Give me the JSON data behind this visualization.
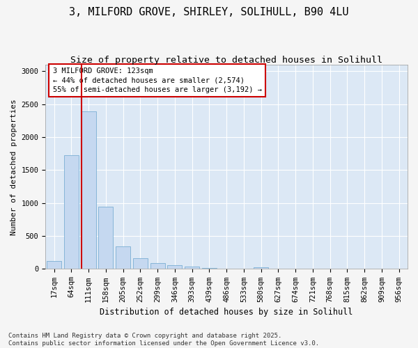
{
  "title_line1": "3, MILFORD GROVE, SHIRLEY, SOLIHULL, B90 4LU",
  "title_line2": "Size of property relative to detached houses in Solihull",
  "xlabel": "Distribution of detached houses by size in Solihull",
  "ylabel": "Number of detached properties",
  "categories": [
    "17sqm",
    "64sqm",
    "111sqm",
    "158sqm",
    "205sqm",
    "252sqm",
    "299sqm",
    "346sqm",
    "393sqm",
    "439sqm",
    "486sqm",
    "533sqm",
    "580sqm",
    "627sqm",
    "674sqm",
    "721sqm",
    "768sqm",
    "815sqm",
    "862sqm",
    "909sqm",
    "956sqm"
  ],
  "values": [
    120,
    1730,
    2390,
    950,
    340,
    160,
    85,
    55,
    40,
    20,
    5,
    5,
    25,
    0,
    0,
    0,
    0,
    0,
    0,
    0,
    0
  ],
  "bar_color": "#c5d8f0",
  "bar_edge_color": "#7aafd4",
  "vline_x_index": 2,
  "vline_color": "#cc0000",
  "annotation_text": "3 MILFORD GROVE: 123sqm\n← 44% of detached houses are smaller (2,574)\n55% of semi-detached houses are larger (3,192) →",
  "annotation_box_edge_color": "#cc0000",
  "ylim": [
    0,
    3100
  ],
  "yticks": [
    0,
    500,
    1000,
    1500,
    2000,
    2500,
    3000
  ],
  "plot_bg_color": "#dce8f5",
  "fig_bg_color": "#f5f5f5",
  "grid_color": "#ffffff",
  "footer": "Contains HM Land Registry data © Crown copyright and database right 2025.\nContains public sector information licensed under the Open Government Licence v3.0.",
  "title1_fontsize": 11,
  "title2_fontsize": 9.5,
  "ylabel_fontsize": 8,
  "xlabel_fontsize": 8.5,
  "tick_fontsize": 7.5,
  "annot_fontsize": 7.5,
  "footer_fontsize": 6.5
}
